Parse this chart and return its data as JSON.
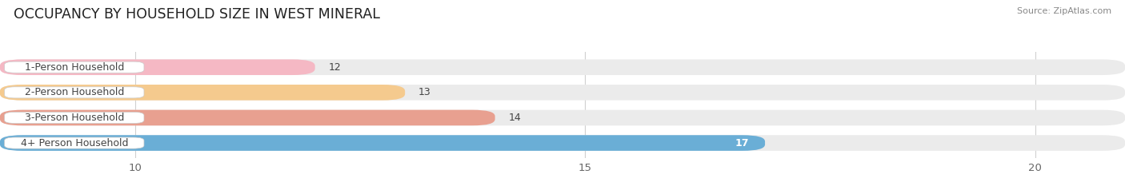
{
  "title": "OCCUPANCY BY HOUSEHOLD SIZE IN WEST MINERAL",
  "source": "Source: ZipAtlas.com",
  "categories": [
    "1-Person Household",
    "2-Person Household",
    "3-Person Household",
    "4+ Person Household"
  ],
  "values": [
    12,
    13,
    14,
    17
  ],
  "bar_colors": [
    "#f5b8c4",
    "#f5ca8e",
    "#e8a090",
    "#6aaed6"
  ],
  "value_inside": [
    false,
    false,
    false,
    true
  ],
  "xlim_left": 8.5,
  "xlim_right": 21.0,
  "xticks": [
    10,
    15,
    20
  ],
  "bar_height": 0.62,
  "bar_gap": 0.38,
  "title_fontsize": 12.5,
  "tick_fontsize": 9.5,
  "label_fontsize": 9,
  "value_fontsize": 9,
  "background_color": "#ffffff",
  "bar_track_color": "#ebebeb",
  "label_box_color": "#ffffff",
  "grid_color": "#d0d0d0",
  "text_color": "#444444",
  "source_color": "#888888"
}
